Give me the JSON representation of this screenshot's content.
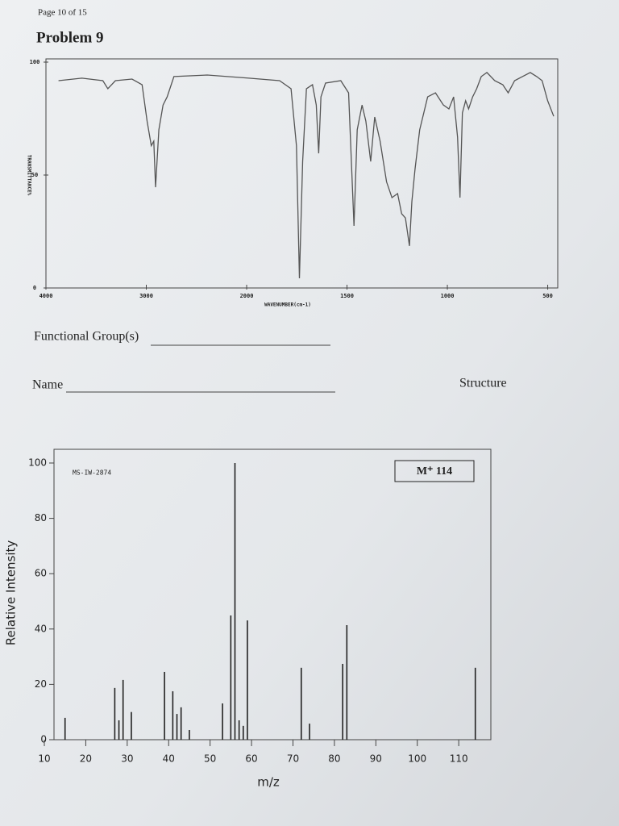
{
  "page_header": "Page 10 of 15",
  "problem_title": "Problem 9",
  "fields": {
    "functional_groups": "Functional Group(s)",
    "name": "Name",
    "structure": "Structure"
  },
  "chart_data": [
    {
      "type": "line",
      "y_label": "TRANSMITTANCE%",
      "x_label": "WAVENUMBER(cm-1)",
      "color": "#555555",
      "x": [
        3875,
        3642,
        3433,
        3383,
        3308,
        3142,
        3042,
        2992,
        2950,
        2925,
        2908,
        2875,
        2833,
        2792,
        2725,
        2392,
        1989,
        1836,
        1779,
        1752,
        1737,
        1721,
        1702,
        1672,
        1653,
        1641,
        1630,
        1607,
        1531,
        1492,
        1465,
        1449,
        1425,
        1406,
        1382,
        1362,
        1335,
        1303,
        1276,
        1248,
        1228,
        1209,
        1189,
        1177,
        1161,
        1138,
        1098,
        1059,
        1020,
        992,
        969,
        949,
        937,
        925,
        909,
        894,
        874,
        854,
        831,
        803,
        764,
        724,
        697,
        665,
        626,
        587,
        555,
        528,
        500,
        470
      ],
      "values": [
        91.8,
        92.9,
        91.8,
        88.2,
        91.8,
        92.5,
        90,
        73.9,
        63,
        65,
        44.6,
        70,
        81,
        84.6,
        93.6,
        94.3,
        92.9,
        91.8,
        88.2,
        63,
        4.3,
        56,
        88.2,
        90,
        81,
        59.6,
        84.6,
        90.7,
        91.8,
        86.4,
        27.5,
        70,
        81,
        73.9,
        56,
        75.7,
        65,
        47,
        40,
        41.8,
        32.9,
        31,
        18.6,
        38.2,
        52.5,
        70,
        84.6,
        86.4,
        81,
        79.3,
        84.6,
        66.8,
        40,
        77.5,
        82.9,
        79.3,
        84.6,
        88.2,
        93.6,
        95.4,
        91.8,
        90,
        86.4,
        91.8,
        93.6,
        95.4,
        93.6,
        91.8,
        82.9,
        76
      ],
      "xlim": [
        4000,
        450
      ],
      "ylim": [
        0,
        100
      ],
      "xticks": [
        4000,
        3000,
        2000,
        1500,
        1000,
        500
      ],
      "yticks": [
        0,
        50,
        100
      ]
    },
    {
      "type": "bar",
      "title": "MS-IW-2874",
      "annotation": "M⁺ 114",
      "x_label": "m/z",
      "y_label": "Relative Intensity",
      "color": "#222222",
      "x": [
        15,
        27,
        28,
        29,
        31,
        39,
        41,
        42,
        43,
        45,
        53,
        55,
        56,
        57,
        58,
        59,
        72,
        74,
        82,
        83,
        114
      ],
      "values": [
        7.9,
        18.7,
        7,
        21.6,
        10,
        24.5,
        17.5,
        9.3,
        11.7,
        3.5,
        13.1,
        44.9,
        100,
        7,
        5,
        43.1,
        26,
        5.8,
        27.4,
        41.4,
        26
      ],
      "xlim": [
        10,
        116
      ],
      "ylim": [
        0,
        100
      ],
      "xticks": [
        10,
        20,
        30,
        40,
        50,
        60,
        70,
        80,
        90,
        100,
        110
      ],
      "yticks": [
        0,
        20,
        40,
        60,
        80,
        100
      ]
    }
  ]
}
